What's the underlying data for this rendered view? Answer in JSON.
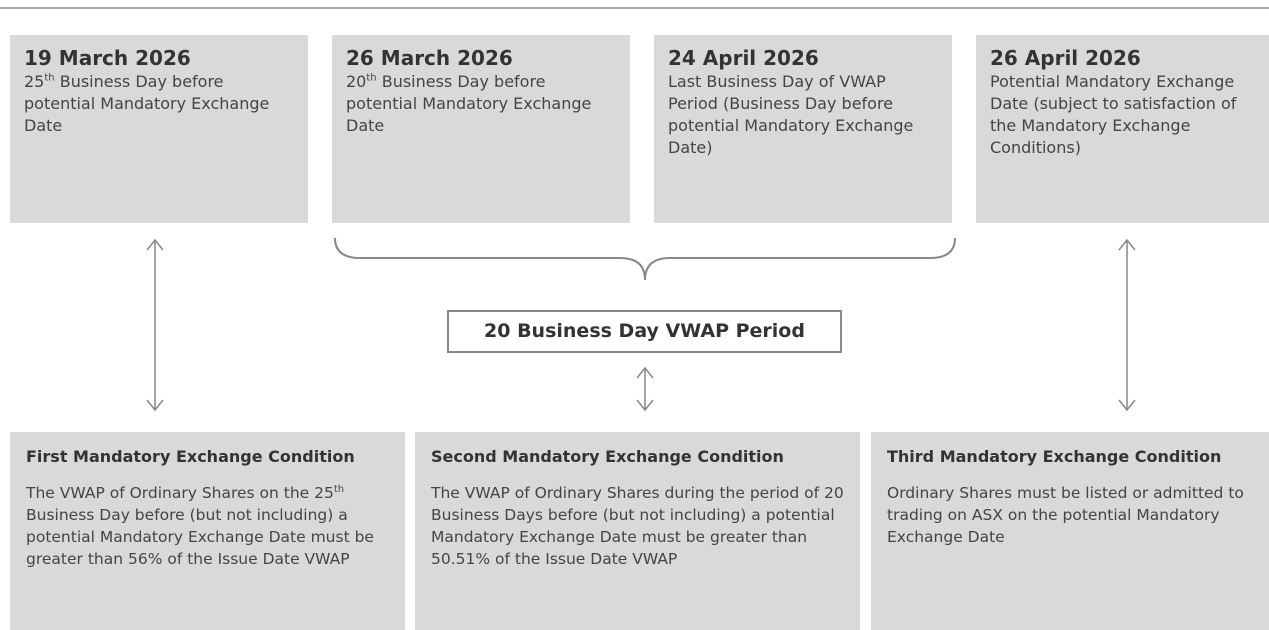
{
  "top_boxes": [
    {
      "date": "19 March 2026",
      "description": [
        "25",
        "th",
        " Business Day before potential Mandatory Exchange Date"
      ]
    },
    {
      "date": "26 March 2026",
      "description": [
        "20",
        "th",
        " Business Day before potential Mandatory Exchange Date"
      ]
    },
    {
      "date": "24 April 2026",
      "description": [
        "Last Business Day of VWAP Period (Business Day before potential Mandatory Exchange Date)"
      ]
    },
    {
      "date": "26 April 2026",
      "description": [
        "Potential Mandatory Exchange Date (subject to satisfaction of the Mandatory Exchange Conditions)"
      ]
    }
  ],
  "period_label": "20 Business Day VWAP Period",
  "conditions": [
    {
      "title": "First Mandatory Exchange Condition",
      "body": [
        "The VWAP of Ordinary Shares on the 25",
        "th",
        " Business Day before (but not including) a potential Mandatory Exchange Date must be greater than 56% of the Issue Date VWAP"
      ]
    },
    {
      "title": "Second Mandatory Exchange Condition",
      "body": [
        "The VWAP of Ordinary Shares during the period of 20 Business Days before (but not including) a potential Mandatory Exchange Date must be greater than 50.51% of the Issue Date VWAP"
      ]
    },
    {
      "title": "Third Mandatory Exchange Condition",
      "body": [
        "Ordinary Shares must be listed or admitted to trading on ASX on the potential Mandatory Exchange Date"
      ]
    }
  ]
}
